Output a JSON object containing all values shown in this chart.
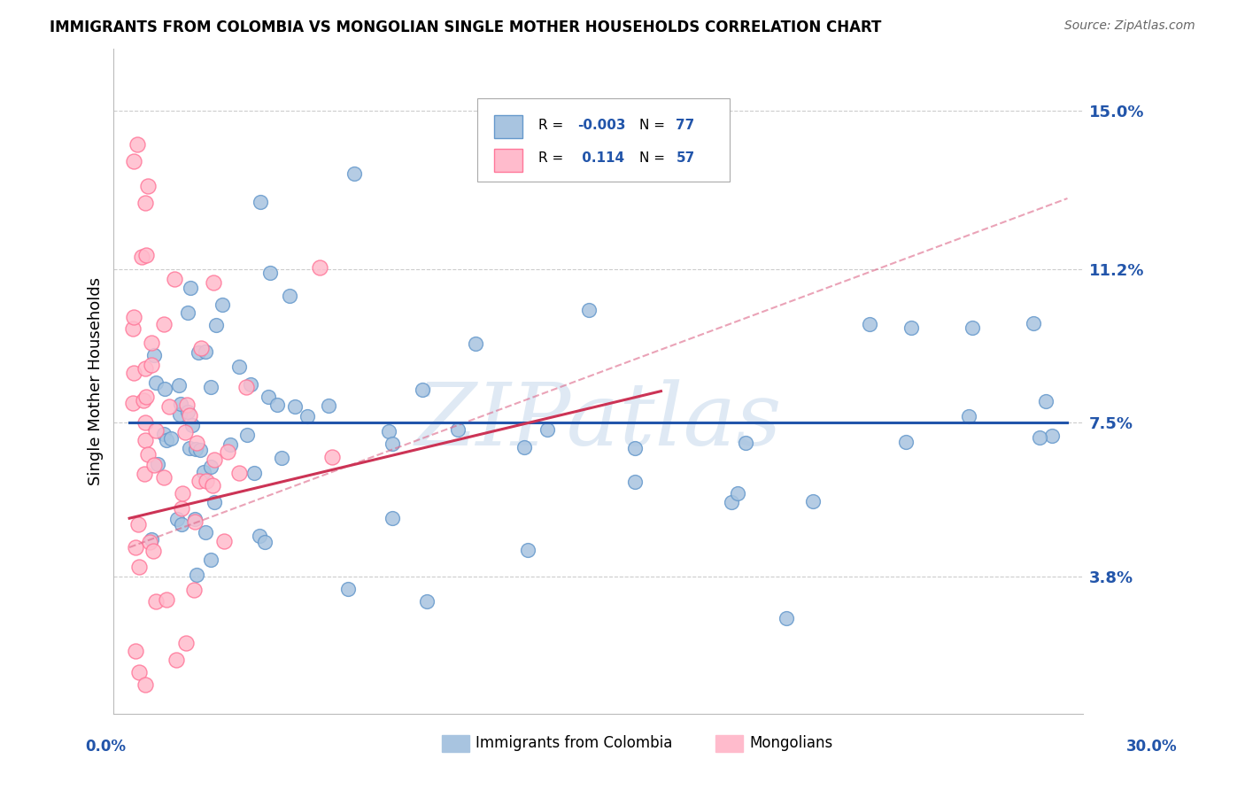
{
  "title": "IMMIGRANTS FROM COLOMBIA VS MONGOLIAN SINGLE MOTHER HOUSEHOLDS CORRELATION CHART",
  "source": "Source: ZipAtlas.com",
  "ylabel": "Single Mother Households",
  "xlim": [
    0.0,
    30.0
  ],
  "ylim": [
    0.5,
    16.5
  ],
  "yticks": [
    3.8,
    7.5,
    11.2,
    15.0
  ],
  "ytick_labels": [
    "3.8%",
    "7.5%",
    "11.2%",
    "15.0%"
  ],
  "color_blue_fill": "#A8C4E0",
  "color_blue_edge": "#6699CC",
  "color_pink_fill": "#FFBBCC",
  "color_pink_edge": "#FF7799",
  "color_blue_line": "#2255AA",
  "color_pink_line": "#CC3355",
  "color_dashed": "#DD6688",
  "watermark": "ZIPatlas",
  "background_color": "#FFFFFF",
  "grid_color": "#CCCCCC",
  "r_colombia": "-0.003",
  "n_colombia": "77",
  "r_mongolia": "0.114",
  "n_mongolia": "57",
  "blue_line_slope": 0.0,
  "blue_line_intercept": 7.5,
  "pink_line_slope": 0.18,
  "pink_line_intercept": 5.2,
  "dashed_slope": 0.28,
  "dashed_intercept": 4.5
}
